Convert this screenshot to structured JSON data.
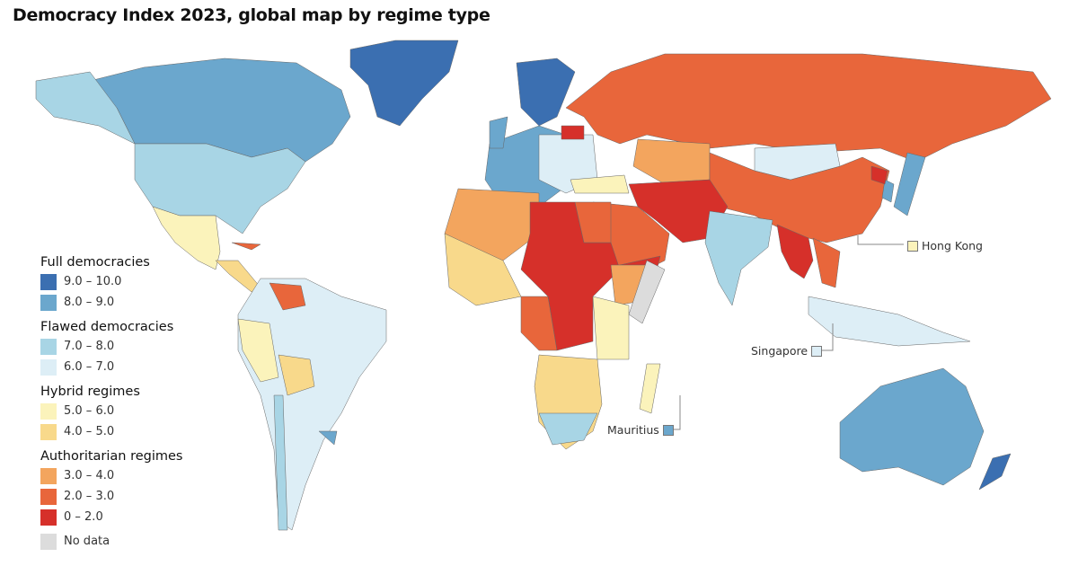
{
  "title": "Democracy Index 2023, global map by regime type",
  "legend": {
    "groups": [
      {
        "title": "Full democracies",
        "items": [
          {
            "label": "9.0 – 10.0",
            "color": "#3b6fb1"
          },
          {
            "label": "8.0 – 9.0",
            "color": "#6ba7cd"
          }
        ]
      },
      {
        "title": "Flawed democracies",
        "items": [
          {
            "label": "7.0 – 8.0",
            "color": "#a8d5e5"
          },
          {
            "label": "6.0 – 7.0",
            "color": "#ddeef6"
          }
        ]
      },
      {
        "title": "Hybrid regimes",
        "items": [
          {
            "label": "5.0 – 6.0",
            "color": "#fbf3bb"
          },
          {
            "label": "4.0 – 5.0",
            "color": "#f8d98b"
          }
        ]
      },
      {
        "title": "Authoritarian regimes",
        "items": [
          {
            "label": "3.0 – 4.0",
            "color": "#f3a55e"
          },
          {
            "label": "2.0 – 3.0",
            "color": "#e8663b"
          },
          {
            "label": "0 – 2.0",
            "color": "#d6302a"
          }
        ]
      }
    ],
    "no_data": {
      "label": "No data",
      "color": "#dcdcdc"
    }
  },
  "callouts": [
    {
      "label": "Hong Kong",
      "band": "5.0 – 6.0",
      "color": "#fbf3bb"
    },
    {
      "label": "Singapore",
      "band": "6.0 – 7.0",
      "color": "#ddeef6"
    },
    {
      "label": "Mauritius",
      "band": "8.0 – 9.0",
      "color": "#6ba7cd"
    }
  ],
  "regions": {
    "greenland": "9.0 – 10.0",
    "nordics": "9.0 – 10.0",
    "new-zealand": "9.0 – 10.0",
    "canada": "8.0 – 9.0",
    "western-europe": "8.0 – 9.0",
    "uk": "8.0 – 9.0",
    "japan": "8.0 – 9.0",
    "south-korea": "8.0 – 9.0",
    "australia": "8.0 – 9.0",
    "uruguay": "8.0 – 9.0",
    "alaska": "7.0 – 8.0",
    "usa": "7.0 – 8.0",
    "india": "7.0 – 8.0",
    "chile": "7.0 – 8.0",
    "south-africa": "7.0 – 8.0",
    "south-america": "6.0 – 7.0",
    "eastern-europe": "6.0 – 7.0",
    "mongolia": "6.0 – 7.0",
    "indonesia": "6.0 – 7.0",
    "mexico": "5.0 – 6.0",
    "peru": "5.0 – 6.0",
    "turkey": "5.0 – 6.0",
    "east-africa": "5.0 – 6.0",
    "madagascar": "5.0 – 6.0",
    "central-america": "4.0 – 5.0",
    "bolivia": "4.0 – 5.0",
    "west-africa": "4.0 – 5.0",
    "southern-africa": "4.0 – 5.0",
    "north-africa": "3.0 – 4.0",
    "kazakhstan": "3.0 – 4.0",
    "ethiopia": "3.0 – 4.0",
    "russia": "2.0 – 3.0",
    "china": "2.0 – 3.0",
    "arabia": "2.0 – 3.0",
    "egypt": "2.0 – 3.0",
    "central-africa": "2.0 – 3.0",
    "venezuela": "2.0 – 3.0",
    "cuba": "2.0 – 3.0",
    "indochina": "2.0 – 3.0",
    "iran-afghanistan": "0 – 2.0",
    "sahel-sudan": "0 – 2.0",
    "yemen": "0 – 2.0",
    "myanmar": "0 – 2.0",
    "north-korea": "0 – 2.0",
    "belarus": "0 – 2.0",
    "somalia": "No data"
  }
}
